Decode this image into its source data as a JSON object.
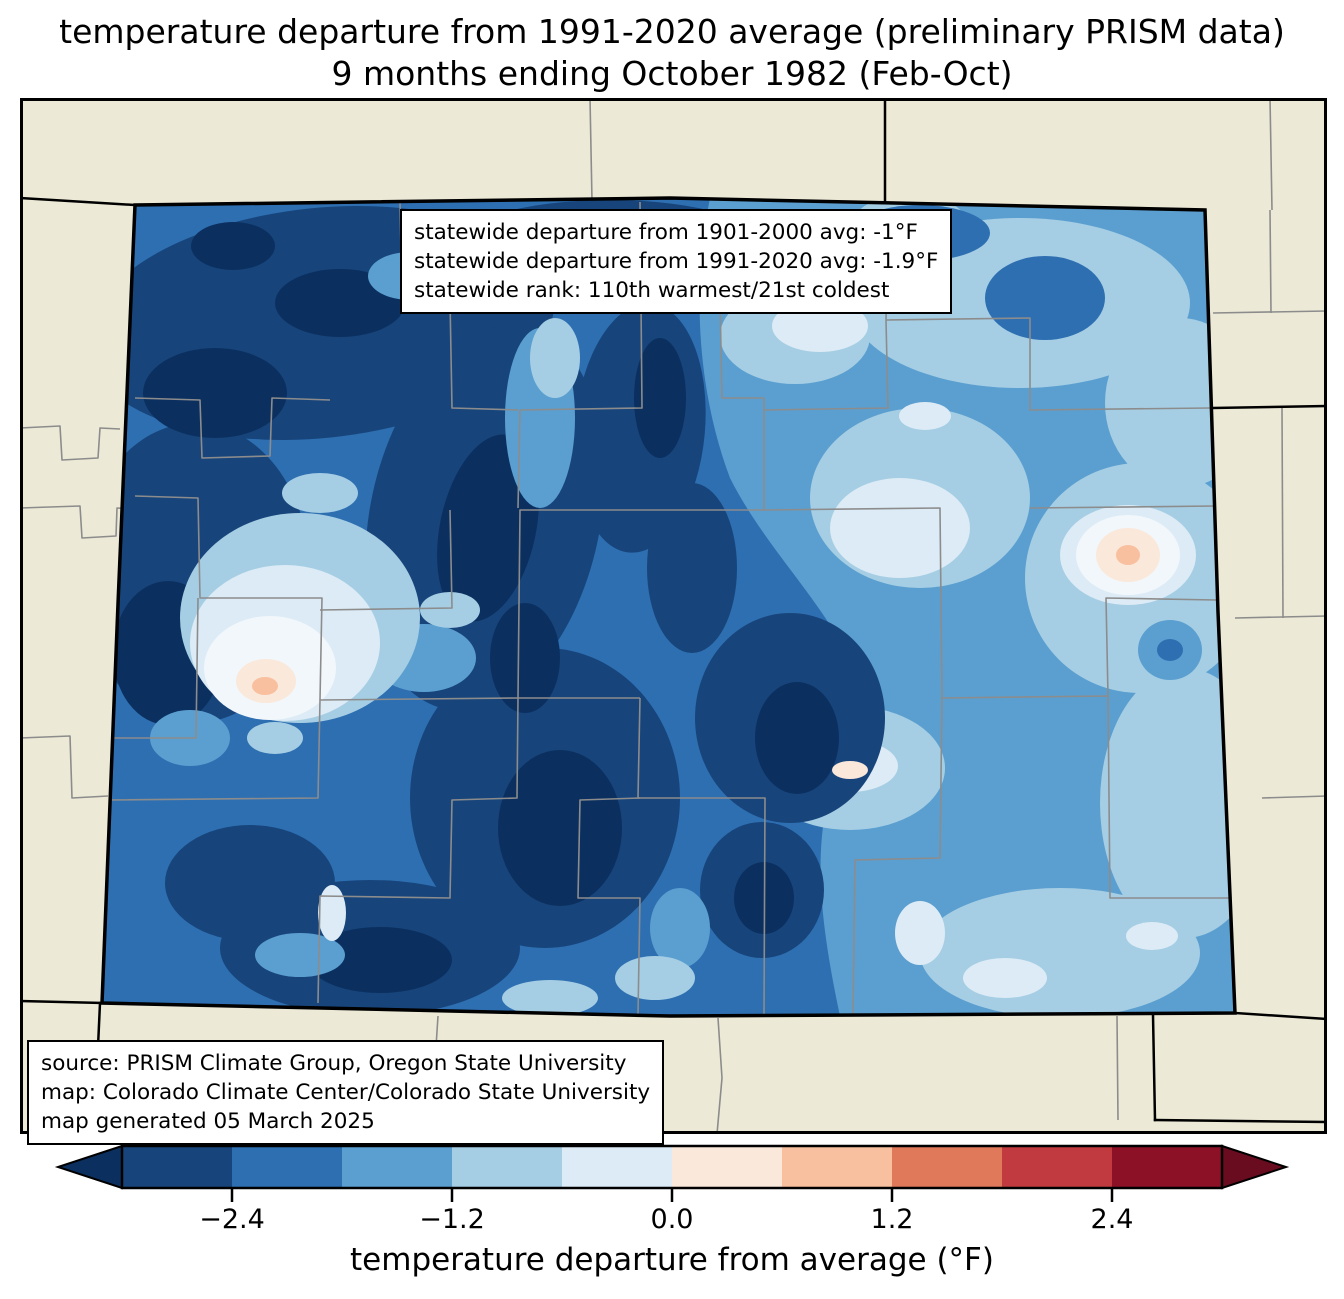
{
  "title": {
    "line1": "temperature departure from 1991-2020 average (preliminary PRISM data)",
    "line2": "9 months ending October 1982 (Feb-Oct)"
  },
  "stats_box": {
    "lines": [
      "statewide departure from 1901-2000 avg: -1°F",
      "statewide departure from 1991-2020 avg: -1.9°F",
      "statewide rank: 110th warmest/21st coldest"
    ]
  },
  "source_box": {
    "lines": [
      "source: PRISM Climate Group, Oregon State University",
      "map: Colorado Climate Center/Colorado State University",
      "map generated 05 March 2025"
    ]
  },
  "colorbar": {
    "label": "temperature departure from average (°F)",
    "ticks": [
      "−2.4",
      "−1.2",
      "0.0",
      "1.2",
      "2.4"
    ],
    "levels": [
      -3.0,
      -2.4,
      -1.8,
      -1.2,
      -0.6,
      0.0,
      0.6,
      1.2,
      1.8,
      2.4,
      3.0
    ],
    "segment_colors": [
      "#17457b",
      "#2e6fb2",
      "#5b9fd0",
      "#a5cee4",
      "#dcebf5",
      "#fae8da",
      "#f8c09f",
      "#e0795a",
      "#c13a40",
      "#8c1127"
    ],
    "under_color": "#0b3060",
    "over_color": "#690c20"
  },
  "map": {
    "region": "Colorado",
    "background_color": "#ece9d6",
    "county_line_color": "#8c8c8c",
    "state_border_color": "#000000"
  },
  "chart_data": {
    "type": "heatmap",
    "title": "temperature departure from 1991-2020 average (preliminary PRISM data), 9 months ending October 1982 (Feb-Oct)",
    "region": "Colorado (filled contour map with county outlines)",
    "colorbar_label": "temperature departure from average (°F)",
    "colorbar_tick_values": [
      -2.4,
      -1.2,
      0.0,
      1.2,
      2.4
    ],
    "contour_levels_F": [
      -3.0,
      -2.4,
      -1.8,
      -1.2,
      -0.6,
      0.0,
      0.6,
      1.2,
      1.8,
      2.4,
      3.0
    ],
    "statewide_departure_from_1901_2000_avg_F": -1,
    "statewide_departure_from_1991_2020_avg_F": -1.9,
    "statewide_rank": "110th warmest/21st coldest",
    "pattern_summary": "Strong cold anomalies (-2 to -3+°F) over western/central Colorado mountains; moderate cold (-1 to -2°F) over eastern plains; two small near-zero/warm spots (west-central and east-central)."
  }
}
